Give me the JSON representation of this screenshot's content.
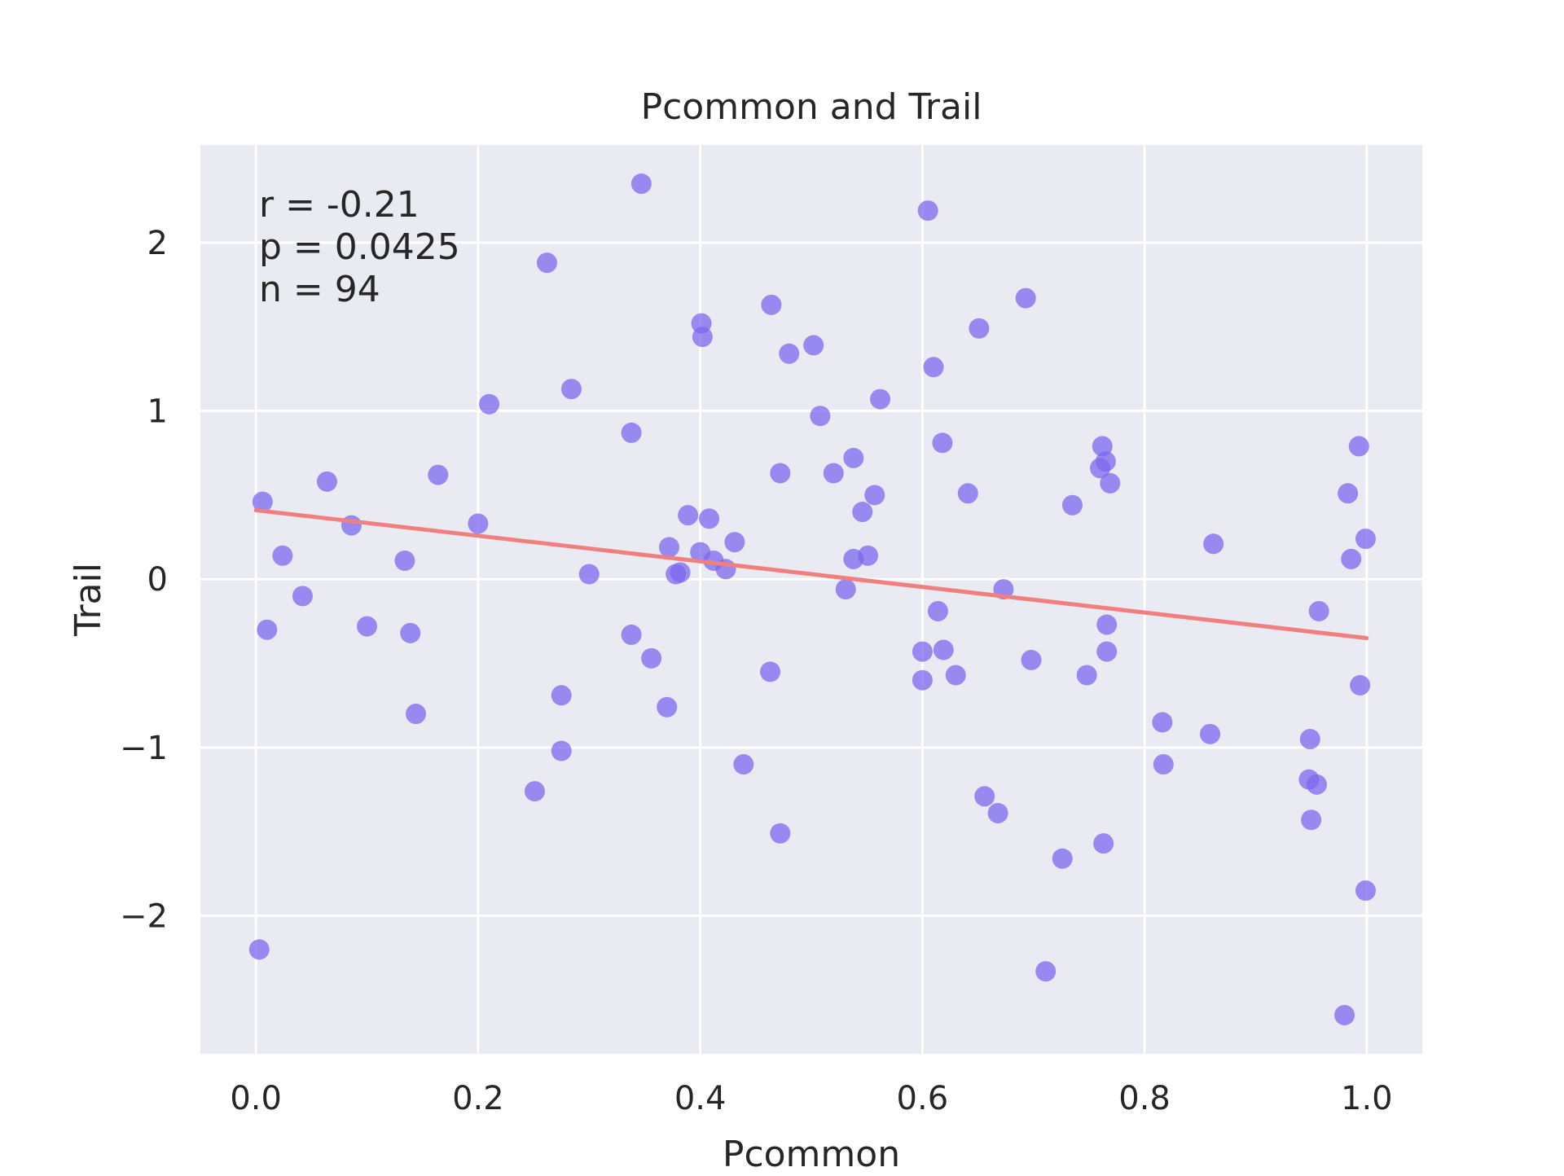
{
  "chart_data": {
    "type": "scatter",
    "title": "Pcommon and Trail",
    "xlabel": "Pcommon",
    "ylabel": "Trail",
    "xlim": [
      -0.05,
      1.05
    ],
    "ylim": [
      -2.82,
      2.58
    ],
    "xticks": [
      0.0,
      0.2,
      0.4,
      0.6,
      0.8,
      1.0
    ],
    "xtick_labels": [
      "0.0",
      "0.2",
      "0.4",
      "0.6",
      "0.8",
      "1.0"
    ],
    "yticks": [
      -2,
      -1,
      0,
      1,
      2
    ],
    "ytick_labels": [
      "−2",
      "−1",
      "0",
      "1",
      "2"
    ],
    "grid": true,
    "annotation": [
      "r = -0.21",
      "p = 0.0425",
      "n = 94"
    ],
    "colors": {
      "background": "#eaeaf2",
      "grid": "#ffffff",
      "points": "#7b68ee",
      "fit_line": "#f08080",
      "text": "#262626"
    },
    "fit_line": {
      "x": [
        0.0,
        1.0
      ],
      "y": [
        0.41,
        -0.35
      ]
    },
    "series": [
      {
        "points": [
          [
            0.006,
            0.46
          ],
          [
            0.01,
            -0.3
          ],
          [
            0.024,
            0.14
          ],
          [
            0.042,
            -0.1
          ],
          [
            0.064,
            0.58
          ],
          [
            0.086,
            0.32
          ],
          [
            0.1,
            -0.28
          ],
          [
            0.134,
            0.11
          ],
          [
            0.139,
            -0.32
          ],
          [
            0.144,
            -0.8
          ],
          [
            0.164,
            0.62
          ],
          [
            0.2,
            0.33
          ],
          [
            0.21,
            1.04
          ],
          [
            0.251,
            -1.26
          ],
          [
            0.262,
            1.88
          ],
          [
            0.275,
            -0.69
          ],
          [
            0.275,
            -1.02
          ],
          [
            0.284,
            1.13
          ],
          [
            0.3,
            0.03
          ],
          [
            0.338,
            0.87
          ],
          [
            0.338,
            -0.33
          ],
          [
            0.347,
            2.35
          ],
          [
            0.356,
            -0.47
          ],
          [
            0.37,
            -0.76
          ],
          [
            0.372,
            0.19
          ],
          [
            0.378,
            0.03
          ],
          [
            0.382,
            0.04
          ],
          [
            0.389,
            0.38
          ],
          [
            0.4,
            0.16
          ],
          [
            0.401,
            1.52
          ],
          [
            0.402,
            1.44
          ],
          [
            0.408,
            0.36
          ],
          [
            0.412,
            0.11
          ],
          [
            0.423,
            0.06
          ],
          [
            0.431,
            0.22
          ],
          [
            0.439,
            -1.1
          ],
          [
            0.464,
            1.63
          ],
          [
            0.463,
            -0.55
          ],
          [
            0.472,
            0.63
          ],
          [
            0.472,
            -1.51
          ],
          [
            0.48,
            1.34
          ],
          [
            0.502,
            1.39
          ],
          [
            0.508,
            0.97
          ],
          [
            0.52,
            0.63
          ],
          [
            0.531,
            -0.06
          ],
          [
            0.538,
            0.72
          ],
          [
            0.538,
            0.12
          ],
          [
            0.546,
            0.4
          ],
          [
            0.551,
            0.14
          ],
          [
            0.557,
            0.5
          ],
          [
            0.562,
            1.07
          ],
          [
            0.6,
            -0.43
          ],
          [
            0.6,
            -0.6
          ],
          [
            0.605,
            2.19
          ],
          [
            0.61,
            1.26
          ],
          [
            0.614,
            -0.19
          ],
          [
            0.618,
            0.81
          ],
          [
            0.619,
            -0.42
          ],
          [
            0.63,
            -0.57
          ],
          [
            0.641,
            0.51
          ],
          [
            0.651,
            1.49
          ],
          [
            0.656,
            -1.29
          ],
          [
            0.668,
            -1.39
          ],
          [
            0.673,
            -0.06
          ],
          [
            0.693,
            1.67
          ],
          [
            0.698,
            -0.48
          ],
          [
            0.711,
            -2.33
          ],
          [
            0.726,
            -1.66
          ],
          [
            0.735,
            0.44
          ],
          [
            0.748,
            -0.57
          ],
          [
            0.76,
            0.66
          ],
          [
            0.762,
            0.79
          ],
          [
            0.763,
            -1.57
          ],
          [
            0.765,
            0.7
          ],
          [
            0.766,
            -0.43
          ],
          [
            0.766,
            -0.27
          ],
          [
            0.769,
            0.57
          ],
          [
            0.816,
            -0.85
          ],
          [
            0.817,
            -1.1
          ],
          [
            0.859,
            -0.92
          ],
          [
            0.862,
            0.21
          ],
          [
            0.948,
            -1.19
          ],
          [
            0.949,
            -0.95
          ],
          [
            0.95,
            -1.43
          ],
          [
            0.955,
            -1.22
          ],
          [
            0.957,
            -0.19
          ],
          [
            0.98,
            -2.59
          ],
          [
            0.983,
            0.51
          ],
          [
            0.986,
            0.12
          ],
          [
            0.993,
            0.79
          ],
          [
            0.994,
            -0.63
          ],
          [
            0.999,
            -1.85
          ],
          [
            0.999,
            0.24
          ],
          [
            0.003,
            -2.2
          ]
        ]
      }
    ]
  }
}
